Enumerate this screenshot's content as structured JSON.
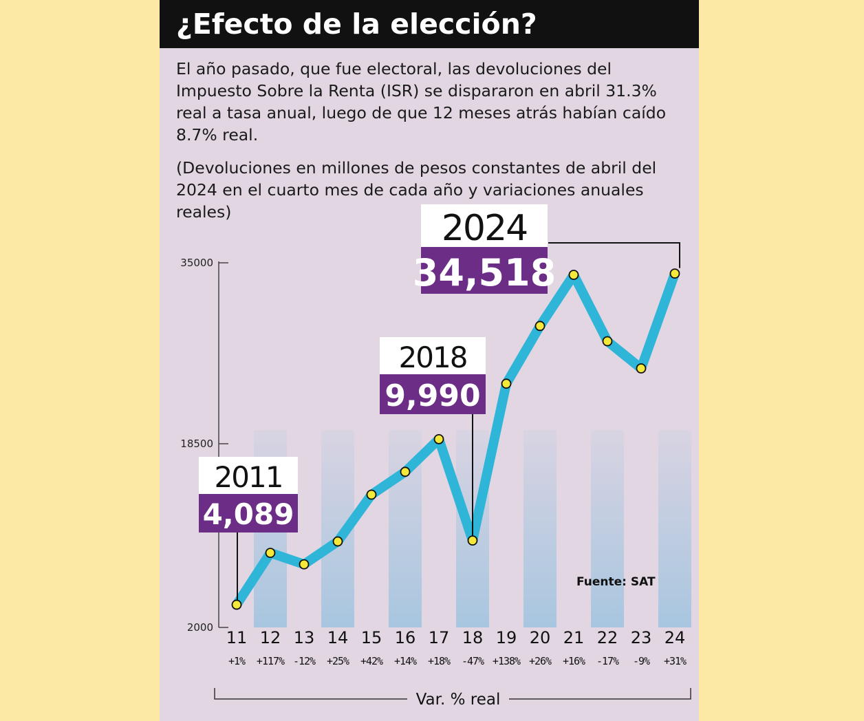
{
  "header": {
    "title": "¿Efecto de la elección?"
  },
  "intro": {
    "paragraph_1": "El año pasado, que fue electoral, las devoluciones del Impuesto Sobre la Renta (ISR) se dispararon en abril 31.3% real a tasa anual, luego de que 12 meses atrás habían caído 8.7% real.",
    "paragraph_2": "(Devoluciones en millones de pesos constantes de abril del 2024 en el cuarto mes de cada año y variaciones anuales reales)"
  },
  "chart_data": {
    "type": "line",
    "y_ticks": [
      "35000",
      "18500",
      "2000"
    ],
    "ylim": [
      2000,
      35000
    ],
    "categories": [
      "11",
      "12",
      "13",
      "14",
      "15",
      "16",
      "17",
      "18",
      "19",
      "20",
      "21",
      "22",
      "23",
      "24"
    ],
    "variations": [
      "+1%",
      "+117%",
      "-12%",
      "+25%",
      "+42%",
      "+14%",
      "+18%",
      "-47%",
      "+138%",
      "+26%",
      "+16%",
      "-17%",
      "-9%",
      "+31%"
    ],
    "values": [
      4089,
      8850,
      7800,
      9900,
      14200,
      16300,
      19300,
      9990,
      24400,
      29700,
      34400,
      28300,
      25800,
      34518
    ],
    "xlabel": "Var. % real",
    "annotations": [
      {
        "year": "2011",
        "value": "4,089"
      },
      {
        "year": "2018",
        "value": "9,990"
      },
      {
        "year": "2024",
        "value": "34,518"
      }
    ],
    "source": "Fuente: SAT",
    "colors": {
      "line": "#2fb5d8",
      "marker": "#f4e83a",
      "annotation_value_bg": "#6b2d86",
      "column_band": "#a8c6e0",
      "panel_bg": "#e1d6e2",
      "page_bg": "#fde9a6"
    }
  }
}
